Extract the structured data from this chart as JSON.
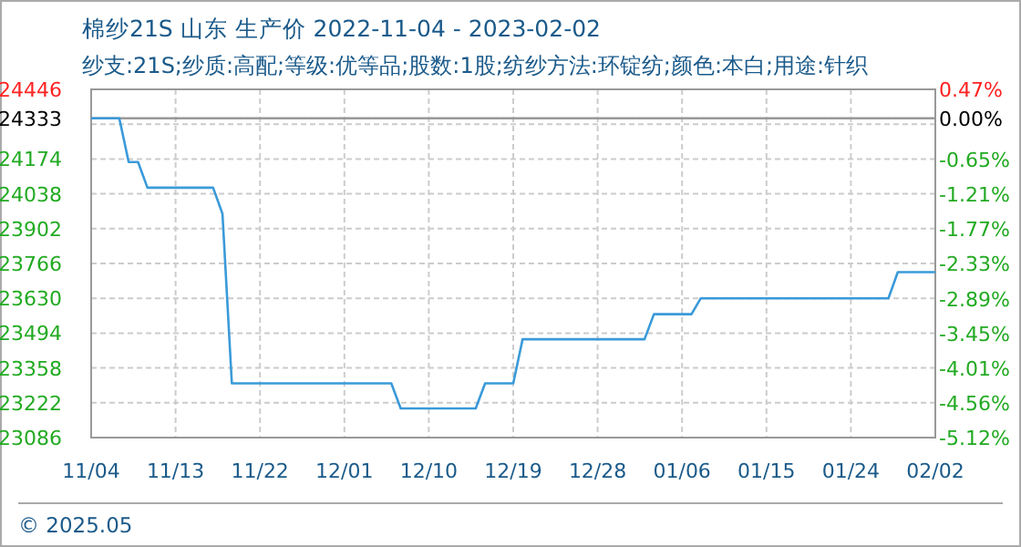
{
  "chart_data": {
    "type": "line",
    "title": "棉纱21S 山东 生产价 2022-11-04 - 2023-02-02",
    "subtitle": "纱支:21S;纱质:高配;等级:优等品;股数:1股;纺纱方法:环锭纺;颜色:本白;用途:针织",
    "x": [
      "2022-11-04",
      "2022-11-07",
      "2022-11-08",
      "2022-11-09",
      "2022-11-10",
      "2022-11-17",
      "2022-11-18",
      "2022-11-19",
      "2022-12-06",
      "2022-12-07",
      "2022-12-15",
      "2022-12-16",
      "2022-12-19",
      "2022-12-20",
      "2023-01-02",
      "2023-01-03",
      "2023-01-07",
      "2023-01-08",
      "2023-01-28",
      "2023-01-29",
      "2023-02-02"
    ],
    "values": [
      24333,
      24333,
      24162,
      24162,
      24062,
      24062,
      23960,
      23298,
      23298,
      23200,
      23200,
      23298,
      23298,
      23470,
      23470,
      23568,
      23568,
      23630,
      23630,
      23732,
      23732
    ],
    "color": "#3a9ad9",
    "xlim": [
      "2022-11-04",
      "2023-02-02"
    ],
    "xticks": [
      {
        "value": "2022-11-04",
        "label": "11/04"
      },
      {
        "value": "2022-11-13",
        "label": "11/13"
      },
      {
        "value": "2022-11-22",
        "label": "11/22"
      },
      {
        "value": "2022-12-01",
        "label": "12/01"
      },
      {
        "value": "2022-12-10",
        "label": "12/10"
      },
      {
        "value": "2022-12-19",
        "label": "12/19"
      },
      {
        "value": "2022-12-28",
        "label": "12/28"
      },
      {
        "value": "2023-01-06",
        "label": "01/06"
      },
      {
        "value": "2023-01-15",
        "label": "01/15"
      },
      {
        "value": "2023-01-24",
        "label": "01/24"
      },
      {
        "value": "2023-02-02",
        "label": "02/02"
      }
    ],
    "ylim": [
      23086,
      24446
    ],
    "yticks": [
      23086,
      23222,
      23358,
      23494,
      23630,
      23766,
      23902,
      24038,
      24174,
      {
        "value": 24310,
        "label": null
      },
      24333,
      24446
    ],
    "y2lim": [
      -5.12,
      0.47
    ],
    "y2ticks": [
      {
        "value": -5.12,
        "label": "-5.12%"
      },
      {
        "value": -4.56,
        "label": "-4.56%"
      },
      {
        "value": -4.01,
        "label": "-4.01%"
      },
      {
        "value": -3.45,
        "label": "-3.45%"
      },
      {
        "value": -2.89,
        "label": "-2.89%"
      },
      {
        "value": -2.33,
        "label": "-2.33%"
      },
      {
        "value": -1.77,
        "label": "-1.77%"
      },
      {
        "value": -1.21,
        "label": "-1.21%"
      },
      {
        "value": -0.65,
        "label": "-0.65%"
      },
      {
        "value": 0,
        "label": "0.00%"
      },
      {
        "value": 0.47,
        "label": "0.47%"
      }
    ],
    "ref_lines": [
      {
        "axis": "y",
        "value": 24333,
        "color": "#999999"
      }
    ],
    "grid": true,
    "annotations": [
      "© 2025.05"
    ]
  }
}
